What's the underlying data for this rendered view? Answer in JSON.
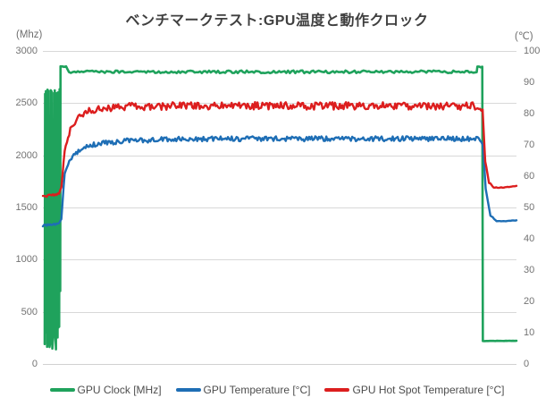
{
  "chart_data": {
    "type": "line",
    "title": "ベンチマークテスト:GPU温度と動作クロック",
    "left_axis": {
      "unit": "(Mhz)",
      "min": 0,
      "max": 3000,
      "ticks": [
        3000,
        2500,
        2000,
        1500,
        1000,
        500,
        0
      ]
    },
    "right_axis": {
      "unit": "(℃)",
      "min": 0,
      "max": 100,
      "ticks": [
        100,
        90,
        80,
        70,
        60,
        50,
        40,
        30,
        20,
        10,
        0
      ]
    },
    "x_axis": {
      "label": "",
      "ticks": [],
      "range": [
        0,
        100
      ],
      "note": "time, unlabeled"
    },
    "grid": "horizontal, every 500 MHz",
    "legend_position": "bottom",
    "colors": {
      "grid": "#d8d8d8",
      "baseline": "#d0d0d0",
      "title": "#3f3f3f",
      "tick_text": "#737373",
      "legend_text": "#4d4d4d"
    },
    "render_hints": {
      "noise_seed": 20250216
    },
    "series": [
      {
        "name": "GPU Clock [MHz]",
        "axis": "left",
        "color": "#1fa25c",
        "width": 2.6,
        "sample_dt": 0.38,
        "idle_oscillation": {
          "t_start": 0.38,
          "t_end": 3.55,
          "half_step": 0.085,
          "low": 140,
          "low_jitter": 220,
          "high": 2612,
          "high_jitter": 28,
          "gap_times": [
            1.4,
            2.1,
            2.65
          ],
          "gap_width": 0.24
        },
        "keypoints": [
          [
            3.55,
            700,
            0
          ],
          [
            3.66,
            700,
            0
          ],
          [
            3.72,
            2858,
            5
          ],
          [
            4.9,
            2846,
            7
          ],
          [
            5.5,
            2800,
            13
          ],
          [
            91.6,
            2800,
            13
          ],
          [
            91.75,
            2846,
            5
          ],
          [
            92.78,
            2848,
            5
          ],
          [
            92.9,
            220,
            1.5
          ],
          [
            100,
            222,
            1.5
          ]
        ]
      },
      {
        "name": "GPU Temperature [°C]",
        "axis": "right",
        "color": "#1e6eb5",
        "width": 2.4,
        "sample_dt": 0.26,
        "keypoints": [
          [
            0,
            44.2,
            0.25
          ],
          [
            3.4,
            44.8,
            0.25
          ],
          [
            3.9,
            46.5,
            0.3
          ],
          [
            4.6,
            61,
            0.4
          ],
          [
            5.8,
            65.5,
            0.5
          ],
          [
            7.5,
            68,
            0.6
          ],
          [
            9.5,
            69.6,
            0.7
          ],
          [
            12,
            70.5,
            0.75
          ],
          [
            18,
            71.3,
            0.8
          ],
          [
            30,
            71.9,
            0.8
          ],
          [
            92.3,
            72,
            0.8
          ],
          [
            92.9,
            70,
            0.4
          ],
          [
            93.5,
            56,
            0.25
          ],
          [
            94.5,
            47.5,
            0.2
          ],
          [
            95.8,
            45.5,
            0.15
          ],
          [
            97,
            45.6,
            0.12
          ],
          [
            100,
            45.9,
            0.12
          ]
        ]
      },
      {
        "name": "GPU Hot Spot Temperature [°C]",
        "axis": "right",
        "color": "#dc1e1e",
        "width": 2.4,
        "sample_dt": 0.26,
        "keypoints": [
          [
            0,
            53.5,
            0.3
          ],
          [
            3.4,
            54.3,
            0.3
          ],
          [
            3.9,
            56.5,
            0.4
          ],
          [
            4.6,
            68,
            0.5
          ],
          [
            5.8,
            75,
            0.6
          ],
          [
            7.5,
            79,
            0.8
          ],
          [
            9.5,
            80.8,
            1.0
          ],
          [
            12,
            81.6,
            1.1
          ],
          [
            18,
            82.2,
            1.2
          ],
          [
            30,
            82.5,
            1.2
          ],
          [
            92.3,
            82.4,
            1.2
          ],
          [
            92.85,
            81,
            0.5
          ],
          [
            93.4,
            65,
            0.3
          ],
          [
            94.2,
            58,
            0.2
          ],
          [
            95.2,
            56.4,
            0.15
          ],
          [
            96.5,
            56.3,
            0.12
          ],
          [
            100,
            56.9,
            0.12
          ]
        ]
      }
    ],
    "summary": {
      "idle_phase": {
        "gpu_clock_mhz": "oscillating 140-2640",
        "gpu_temp_c": 44,
        "hot_spot_c": 54
      },
      "load_phase": {
        "gpu_clock_mhz": 2800,
        "gpu_temp_c": 72,
        "hot_spot_c": 82.5
      },
      "cooldown_phase": {
        "gpu_clock_mhz": 220,
        "gpu_temp_c": 46,
        "hot_spot_c": 57
      }
    }
  }
}
